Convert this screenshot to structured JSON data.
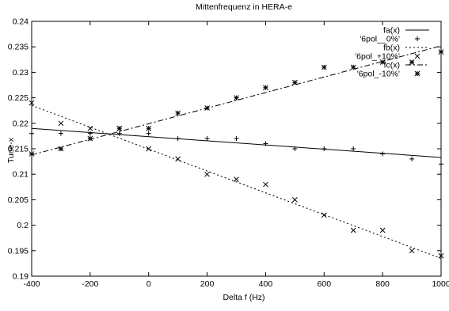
{
  "chart_data": {
    "type": "scatter",
    "title": "Mittenfrequenz in HERA-e",
    "xlabel": "Delta f (Hz)",
    "ylabel": "Tune-x",
    "xlim": [
      -400,
      1000
    ],
    "ylim": [
      0.19,
      0.24
    ],
    "x_ticks": [
      "-400",
      "-200",
      "0",
      "200",
      "400",
      "600",
      "800",
      "1000"
    ],
    "y_ticks": [
      "0.19",
      "0.195",
      "0.2",
      "0.205",
      "0.21",
      "0.215",
      "0.22",
      "0.225",
      "0.23",
      "0.235",
      "0.24"
    ],
    "grid": false,
    "legend_position": "top-right",
    "lines": [
      {
        "name": "fa(x)",
        "style": "solid",
        "x": [
          -400,
          1000
        ],
        "y": [
          0.219,
          0.2133
        ]
      },
      {
        "name": "fb(x)",
        "style": "dotted",
        "x": [
          -400,
          1000
        ],
        "y": [
          0.2235,
          0.1935
        ]
      },
      {
        "name": "fc(x)",
        "style": "dash-dot",
        "x": [
          -400,
          1000
        ],
        "y": [
          0.2138,
          0.2352
        ]
      }
    ],
    "series": [
      {
        "name": "'6pol__0%'",
        "marker": "plus",
        "x": [
          -400,
          -300,
          -200,
          -100,
          0,
          100,
          200,
          300,
          400,
          500,
          600,
          700,
          800,
          900,
          1000
        ],
        "y": [
          0.218,
          0.218,
          0.218,
          0.218,
          0.218,
          0.217,
          0.217,
          0.217,
          0.216,
          0.215,
          0.215,
          0.215,
          0.214,
          0.213,
          0.212
        ]
      },
      {
        "name": "'6pol_+10%'",
        "marker": "cross",
        "x": [
          -400,
          -300,
          -200,
          -100,
          0,
          100,
          200,
          300,
          400,
          500,
          600,
          700,
          800,
          900,
          1000
        ],
        "y": [
          0.224,
          0.22,
          0.219,
          0.219,
          0.215,
          0.213,
          0.21,
          0.209,
          0.208,
          0.205,
          0.202,
          0.199,
          0.199,
          0.195,
          0.194
        ]
      },
      {
        "name": "'6pol_-10%'",
        "marker": "star",
        "x": [
          -400,
          -300,
          -200,
          -100,
          0,
          100,
          200,
          300,
          400,
          500,
          600,
          700,
          800,
          900,
          1000
        ],
        "y": [
          0.214,
          0.215,
          0.217,
          0.219,
          0.219,
          0.222,
          0.223,
          0.225,
          0.227,
          0.228,
          0.231,
          0.231,
          0.232,
          0.232,
          0.234
        ]
      }
    ],
    "legend": [
      {
        "label": "fa(x)",
        "kind": "line",
        "style": "solid"
      },
      {
        "label": "'6pol__0%'",
        "kind": "marker",
        "marker": "plus"
      },
      {
        "label": "fb(x)",
        "kind": "line",
        "style": "dotted"
      },
      {
        "label": "'6pol_+10%'",
        "kind": "marker",
        "marker": "cross"
      },
      {
        "label": "fc(x)",
        "kind": "line",
        "style": "dash-dot"
      },
      {
        "label": "'6pol_-10%'",
        "kind": "marker",
        "marker": "star"
      }
    ]
  }
}
